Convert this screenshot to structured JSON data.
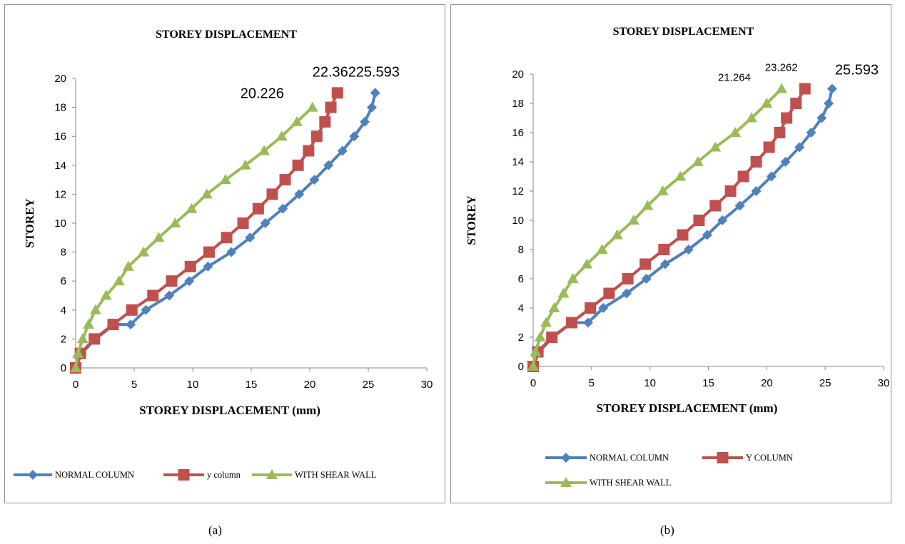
{
  "colors": {
    "normal": "#4f81bd",
    "ycol": "#c0504d",
    "wall": "#9bbb59",
    "frame": "#8c8c8c"
  },
  "captions": {
    "a": "(a)",
    "b": "(b)"
  },
  "chart_data": [
    {
      "type": "line",
      "title": "STOREY DISPLACEMENT",
      "xlabel": "STOREY DISPLACEMENT (mm)",
      "ylabel": "STOREY",
      "xlim": [
        0,
        30
      ],
      "ylim": [
        0,
        20
      ],
      "x_ticks": [
        "0",
        "5",
        "10",
        "15",
        "20",
        "25",
        "30"
      ],
      "y_ticks": [
        "0",
        "2",
        "4",
        "6",
        "8",
        "10",
        "12",
        "14",
        "16",
        "18",
        "20"
      ],
      "grid": false,
      "legend": "bottom",
      "series": [
        {
          "name": "NORMAL COLUMN",
          "marker": "diamond",
          "color": "#4f81bd",
          "x": [
            0,
            0.5,
            1.7,
            3.3,
            4.7,
            6.0,
            8.0,
            9.7,
            11.3,
            13.3,
            14.9,
            16.2,
            17.7,
            19.1,
            20.4,
            21.6,
            22.8,
            23.8,
            24.7,
            25.3,
            25.593
          ],
          "y": [
            0,
            1,
            2,
            3,
            3,
            4,
            5,
            6,
            7,
            8,
            9,
            10,
            11,
            12,
            13,
            14,
            15,
            16,
            17,
            18,
            19
          ],
          "end_label": "25.593"
        },
        {
          "name": "y column",
          "marker": "square",
          "color": "#c0504d",
          "x": [
            0,
            0.4,
            1.6,
            3.2,
            4.8,
            6.6,
            8.2,
            9.8,
            11.4,
            12.9,
            14.3,
            15.6,
            16.8,
            17.9,
            19.0,
            19.9,
            20.6,
            21.3,
            21.8,
            22.362
          ],
          "y": [
            0,
            1,
            2,
            3,
            4,
            5,
            6,
            7,
            8,
            9,
            10,
            11,
            12,
            13,
            14,
            15,
            16,
            17,
            18,
            19
          ],
          "end_label": "22.362"
        },
        {
          "name": "WITH SHEAR WALL",
          "marker": "triangle",
          "color": "#9bbb59",
          "x": [
            0,
            0.2,
            0.6,
            1.1,
            1.7,
            2.6,
            3.7,
            4.5,
            5.8,
            7.1,
            8.5,
            9.9,
            11.2,
            12.8,
            14.5,
            16.1,
            17.6,
            18.9,
            20.226
          ],
          "y": [
            0,
            1,
            2,
            3,
            4,
            5,
            6,
            7,
            8,
            9,
            10,
            11,
            12,
            13,
            14,
            15,
            16,
            17,
            18
          ],
          "end_label": "20.226"
        }
      ]
    },
    {
      "type": "line",
      "title": "STOREY DISPLACEMENT",
      "xlabel": "STOREY DISPLACEMENT (mm)",
      "ylabel": "STOREY",
      "xlim": [
        0,
        30
      ],
      "ylim": [
        0,
        20
      ],
      "x_ticks": [
        "0",
        "5",
        "10",
        "15",
        "20",
        "25",
        "30"
      ],
      "y_ticks": [
        "0",
        "2",
        "4",
        "6",
        "8",
        "10",
        "12",
        "14",
        "16",
        "18",
        "20"
      ],
      "grid": false,
      "legend": "bottom",
      "series": [
        {
          "name": "NORMAL COLUMN",
          "marker": "diamond",
          "color": "#4f81bd",
          "x": [
            0,
            0.5,
            1.7,
            3.3,
            4.7,
            6.0,
            8.0,
            9.7,
            11.3,
            13.3,
            14.9,
            16.2,
            17.7,
            19.1,
            20.4,
            21.6,
            22.8,
            23.8,
            24.7,
            25.3,
            25.593
          ],
          "y": [
            0,
            1,
            2,
            3,
            3,
            4,
            5,
            6,
            7,
            8,
            9,
            10,
            11,
            12,
            13,
            14,
            15,
            16,
            17,
            18,
            19
          ],
          "end_label": "25.593"
        },
        {
          "name": "Y COLUMN",
          "marker": "square",
          "color": "#c0504d",
          "x": [
            0,
            0.4,
            1.6,
            3.3,
            4.9,
            6.5,
            8.1,
            9.6,
            11.2,
            12.8,
            14.2,
            15.6,
            16.9,
            18.0,
            19.1,
            20.2,
            21.1,
            21.7,
            22.5,
            23.262
          ],
          "y": [
            0,
            1,
            2,
            3,
            4,
            5,
            6,
            7,
            8,
            9,
            10,
            11,
            12,
            13,
            14,
            15,
            16,
            17,
            18,
            19
          ],
          "end_label": "23.262"
        },
        {
          "name": "WITH SHEAR WALL",
          "marker": "triangle",
          "color": "#9bbb59",
          "x": [
            0,
            0.2,
            0.6,
            1.1,
            1.8,
            2.6,
            3.4,
            4.6,
            5.9,
            7.2,
            8.6,
            9.8,
            11.1,
            12.6,
            14.1,
            15.6,
            17.3,
            18.7,
            20.0,
            21.264
          ],
          "y": [
            0,
            1,
            2,
            3,
            4,
            5,
            6,
            7,
            8,
            9,
            10,
            11,
            12,
            13,
            14,
            15,
            16,
            17,
            18,
            19
          ],
          "end_label": "21.264"
        }
      ]
    }
  ]
}
